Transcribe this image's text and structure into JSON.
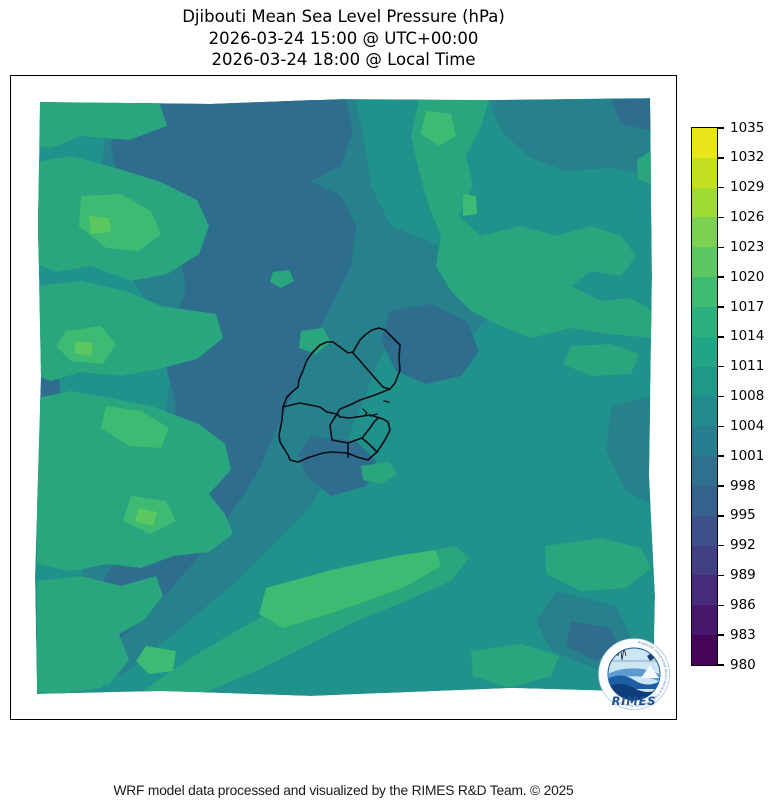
{
  "title": {
    "line1": "Djibouti Mean Sea Level Pressure (hPa)",
    "line2": "2026-03-24 15:00 @ UTC+00:00",
    "line3": "2026-03-24 18:00 @ Local Time"
  },
  "footer": {
    "credit": "WRF model data processed and visualized by the RIMES R&D Team. © 2025"
  },
  "logo": {
    "name": "RIMES",
    "ring_text": "Regional Integrated Multi-Hazard Early Warning System",
    "wordmark_color": "#1d4f96"
  },
  "colorbar": {
    "unit": "hPa",
    "tick_labels": [
      "1035",
      "1032",
      "1029",
      "1026",
      "1023",
      "1020",
      "1017",
      "1014",
      "1011",
      "1008",
      "1004",
      "1001",
      "998",
      "995",
      "992",
      "989",
      "986",
      "983",
      "980"
    ],
    "band_colors_top_to_bottom": [
      "#eae51a",
      "#c5e021",
      "#a0da35",
      "#7cd250",
      "#5bc863",
      "#3fbc71",
      "#2bb07e",
      "#21a585",
      "#1f988a",
      "#218b8d",
      "#277e8e",
      "#2e708e",
      "#35618d",
      "#3d5089",
      "#433f85",
      "#472b7a",
      "#47176b",
      "#440457"
    ]
  },
  "map": {
    "palette": {
      "base": "#21918c",
      "low1": "#26818d",
      "low2": "#2e6d8e",
      "high1": "#29a67e",
      "high2": "#3eba73",
      "high3": "#5bc75f",
      "border": "#0b0b12"
    },
    "overlay": "Djibouti national and regional administrative boundaries"
  },
  "chart_data": {
    "type": "heatmap",
    "title": "Djibouti Mean Sea Level Pressure (hPa)",
    "variable": "Mean Sea Level Pressure",
    "unit": "hPa",
    "colormap": "viridis (discrete filled contours, 3 hPa steps)",
    "colorbar_ticks": [
      1035,
      1032,
      1029,
      1026,
      1023,
      1020,
      1017,
      1014,
      1011,
      1008,
      1004,
      1001,
      998,
      995,
      992,
      989,
      986,
      983,
      980
    ],
    "colorbar_range": [
      980,
      1035
    ],
    "field_summary": {
      "dominant_band_hpa": [
        1008,
        1011
      ],
      "observed_range_hpa": [
        1001,
        1023
      ],
      "low_pressure_areas": [
        "broad diagonal band from north-center across the middle toward the southwest corner",
        "block along the top edge left of center",
        "lobe northeast of Djibouti",
        "patch just south of Djibouti",
        "small spot near the bottom-right"
      ],
      "high_pressure_areas": [
        "scalloped band along the entire western edge",
        "large blob in the northeast quadrant with brighter cores",
        "diagonal band across the south-central area with a brighter core",
        "patches near the southeast corner"
      ]
    },
    "overlay": "Djibouti country outline with internal regional boundaries (Obock, Tadjourah, Dikhil, Ali Sabieh, Arta, Djibouti)"
  }
}
